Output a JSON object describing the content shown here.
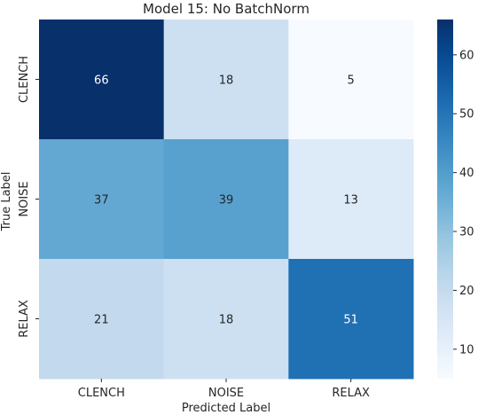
{
  "chart_data": {
    "type": "heatmap",
    "title": "Model 15: No BatchNorm",
    "xlabel": "Predicted Label",
    "ylabel": "True Label",
    "x_categories": [
      "CLENCH",
      "NOISE",
      "RELAX"
    ],
    "y_categories": [
      "CLENCH",
      "NOISE",
      "RELAX"
    ],
    "values": [
      [
        66,
        18,
        5
      ],
      [
        37,
        39,
        13
      ],
      [
        21,
        18,
        51
      ]
    ],
    "colormap": "Blues",
    "color_range": [
      5,
      66
    ],
    "colorbar_ticks": [
      10,
      20,
      30,
      40,
      50,
      60
    ],
    "annotate": true,
    "grid": false
  }
}
